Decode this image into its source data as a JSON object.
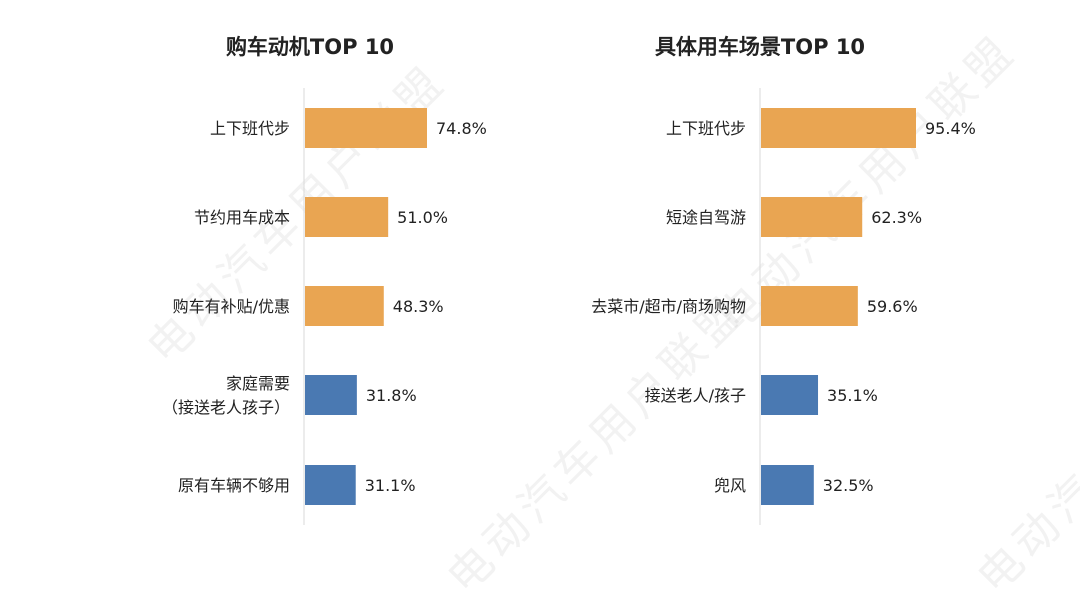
{
  "watermark": "电动汽车用户联盟",
  "colors": {
    "orange": "#E9A552",
    "blue": "#4A79B2",
    "axis": "#d9d9d9",
    "text": "#222222"
  },
  "chart_data": [
    {
      "type": "bar",
      "orientation": "horizontal",
      "title": "购车动机TOP 10",
      "categories": [
        [
          "上下班代步"
        ],
        [
          "节约用车成本"
        ],
        [
          "购车有补贴/优惠"
        ],
        [
          "家庭需要",
          "（接送老人孩子）"
        ],
        [
          "原有车辆不够用"
        ]
      ],
      "values": [
        74.8,
        51.0,
        48.3,
        31.8,
        31.1
      ],
      "labels": [
        "74.8%",
        "51.0%",
        "48.3%",
        "31.8%",
        "31.1%"
      ],
      "bar_colors": [
        "orange",
        "orange",
        "orange",
        "blue",
        "blue"
      ]
    },
    {
      "type": "bar",
      "orientation": "horizontal",
      "title": "具体用车场景TOP 10",
      "categories": [
        [
          "上下班代步"
        ],
        [
          "短途自驾游"
        ],
        [
          "去菜市/超市/商场购物"
        ],
        [
          "接送老人/孩子"
        ],
        [
          "兜风"
        ]
      ],
      "values": [
        95.4,
        62.3,
        59.6,
        35.1,
        32.5
      ],
      "labels": [
        "95.4%",
        "62.3%",
        "59.6%",
        "35.1%",
        "32.5%"
      ],
      "bar_colors": [
        "orange",
        "orange",
        "orange",
        "blue",
        "blue"
      ]
    }
  ]
}
